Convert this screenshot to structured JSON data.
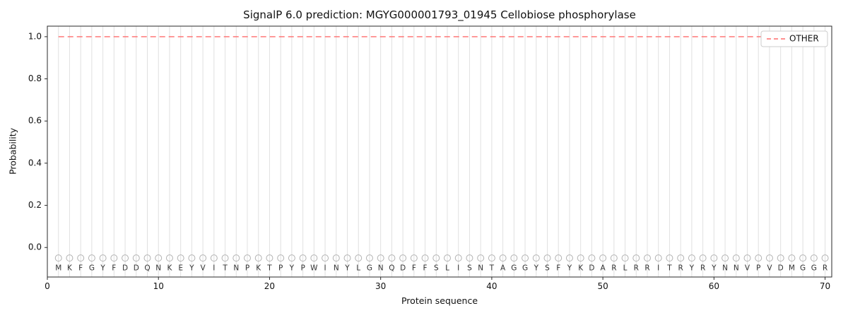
{
  "chart_data": {
    "type": "line",
    "title": "SignalP 6.0 prediction: MGYG000001793_01945 Cellobiose phosphorylase",
    "xlabel": "Protein sequence",
    "ylabel": "Probability",
    "xlim": [
      0,
      70.6
    ],
    "ylim": [
      -0.14,
      1.05
    ],
    "xticks": [
      0,
      10,
      20,
      30,
      40,
      50,
      60,
      70
    ],
    "yticks": [
      "0.0",
      "0.2",
      "0.4",
      "0.6",
      "0.8",
      "1.0"
    ],
    "grid": "vertical line at every residue position",
    "sequence": "MKFGYFDDQNKEYVITNPKTPYPWINYLGNQDFFSLISNTAGGYSFYKDARLRRITRYRYNNVPVDMGGR",
    "series": [
      {
        "name": "OTHER",
        "style": "dashed",
        "color": "#ff6b6b",
        "x_start": 1,
        "x_end": 70,
        "constant_value": 1.0
      }
    ],
    "marker_row": {
      "y": -0.05,
      "marker": "open-circle",
      "color": "#b3b3b3"
    },
    "letter_row_y": -0.098,
    "legend": {
      "position": "upper right",
      "entries": [
        {
          "label": "OTHER",
          "color": "#ff6b6b",
          "style": "dashed"
        }
      ]
    },
    "style": {
      "grid_color": "#e0e0e0",
      "spine_color": "#2a2a2a",
      "tick_color": "#111111",
      "letter_color": "#333333",
      "legend_border": "#cccccc",
      "background": "#ffffff"
    }
  }
}
